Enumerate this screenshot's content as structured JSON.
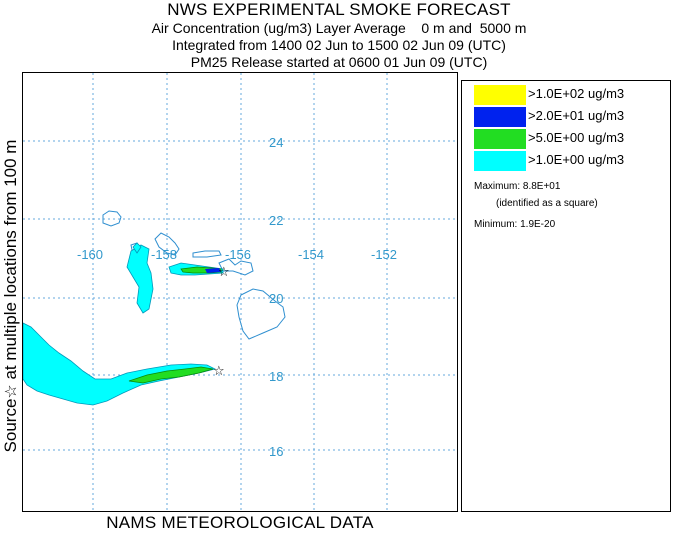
{
  "header": {
    "title": "NWS EXPERIMENTAL SMOKE FORECAST",
    "line2": "Air Concentration (ug/m3) Layer Average    0 m and  5000 m",
    "line3": "Integrated from 1400 02 Jun to 1500 02 Jun 09 (UTC)",
    "line4": "PM25 Release started at 0600 01 Jun 09 (UTC)"
  },
  "side_label": {
    "prefix": "Source",
    "star": "☆",
    "text": " at multiple locations      from   100 m"
  },
  "bottom_label": "NAMS METEOROLOGICAL DATA",
  "map": {
    "latitude_labels": [
      "24",
      "22",
      "20",
      "18",
      "16"
    ],
    "longitude_labels": [
      "-160",
      "-158",
      "-156",
      "-154",
      "-152"
    ],
    "colors": {
      "grid": "#66aadd",
      "coast": "#2f8fd0",
      "label": "#3399cc"
    }
  },
  "legend": {
    "entries": [
      {
        "label": ">1.0E+02 ug/m3",
        "color": "#ffff00"
      },
      {
        "label": ">2.0E+01 ug/m3",
        "color": "#0022ee"
      },
      {
        "label": ">5.0E+00 ug/m3",
        "color": "#22dd22"
      },
      {
        "label": ">1.0E+00 ug/m3",
        "color": "#00ffff"
      }
    ],
    "maximum": "Maximum: 8.8E+01",
    "maximum_note": "(identified as a square)",
    "minimum": "Minimum: 1.9E-20"
  }
}
